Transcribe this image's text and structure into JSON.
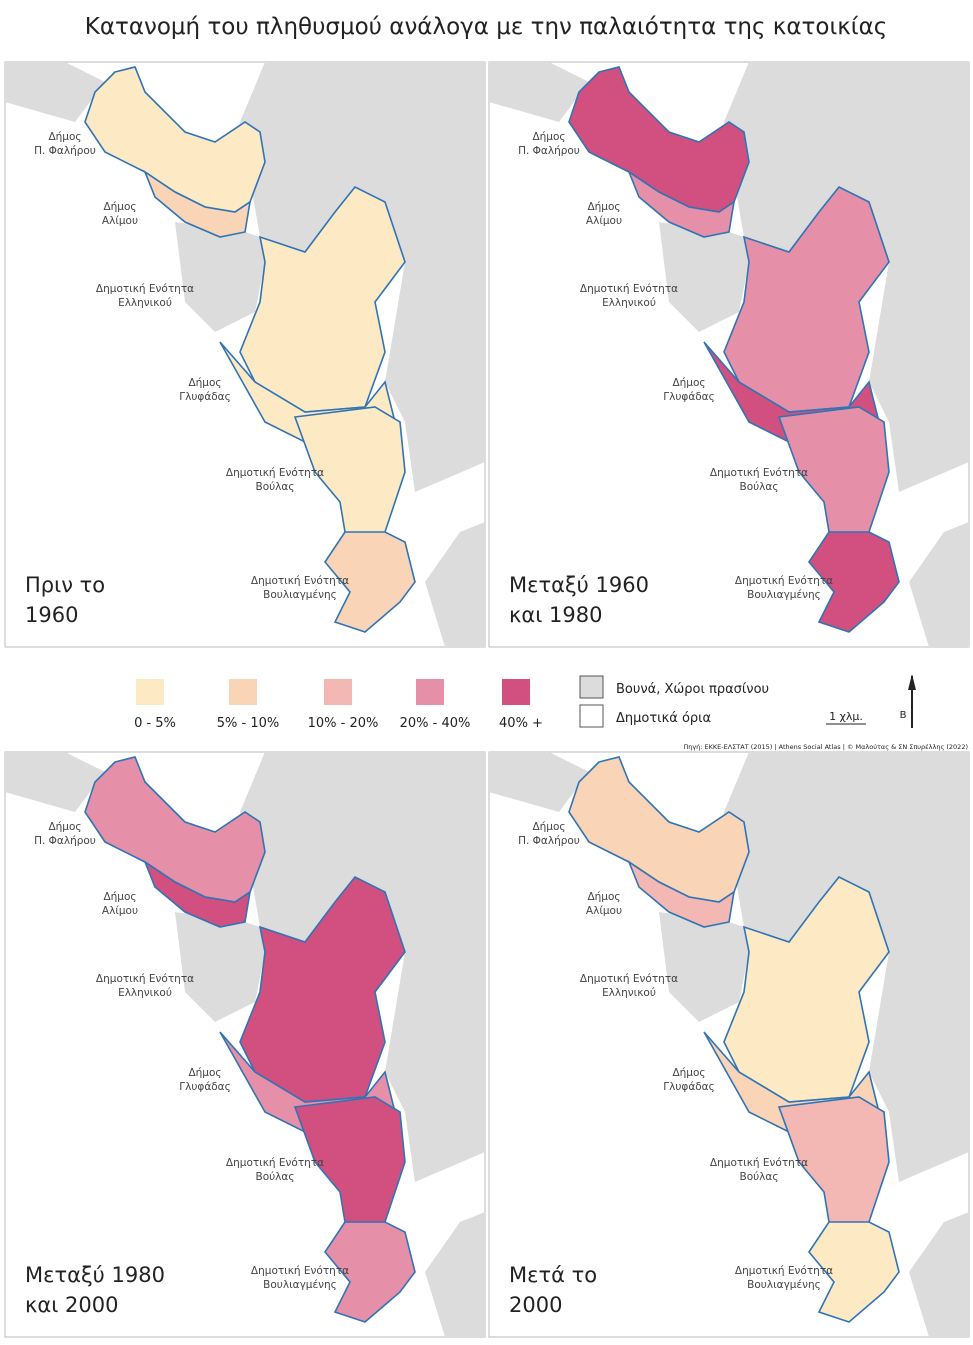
{
  "title": "Κατανομή του πληθυσμού ανάλογα με την παλαιότητα της κατοικίας",
  "panels": [
    {
      "label": [
        "Πριν το",
        "1960"
      ]
    },
    {
      "label": [
        "Μεταξύ 1960",
        "και 1980"
      ]
    },
    {
      "label": [
        "Μεταξύ 1980",
        "και 2000"
      ]
    },
    {
      "label": [
        "Μετά  το",
        "2000"
      ]
    }
  ],
  "municipalities": [
    [
      "Δήμος",
      "Π. Φαλήρου"
    ],
    [
      "Δήμος",
      "Αλίμου"
    ],
    [
      "Δημοτική Ενότητα",
      "Ελληνικού"
    ],
    [
      "Δήμος",
      "Γλυφάδας"
    ],
    [
      "Δημοτική Ενότητα",
      "Βούλας"
    ],
    [
      "Δημοτική Ενότητα",
      "Βουλιαγμένης"
    ]
  ],
  "legend": {
    "classes": [
      {
        "label": "0 - 5%",
        "color": "#fde9c4"
      },
      {
        "label": "5% - 10%",
        "color": "#f9d4b6"
      },
      {
        "label": "10% - 20%",
        "color": "#f3b8b4"
      },
      {
        "label": "20% - 40%",
        "color": "#e68fa8"
      },
      {
        "label": "40% +",
        "color": "#d2507f"
      }
    ],
    "other": [
      {
        "label": "Βουνά, Χώροι πρασίνου",
        "color": "#dcdcdc"
      },
      {
        "label": "Δημοτικά όρια",
        "color": "#ffffff"
      }
    ],
    "scale": "1 χλμ.",
    "north": "Β"
  },
  "source": "Πηγή: ΕΚΚΕ-ΕΛΣΤΑΤ (2015) | Athens Social Atlas | © Μαλούτας & ΣΝ Σπυρέλλης (2022)"
}
